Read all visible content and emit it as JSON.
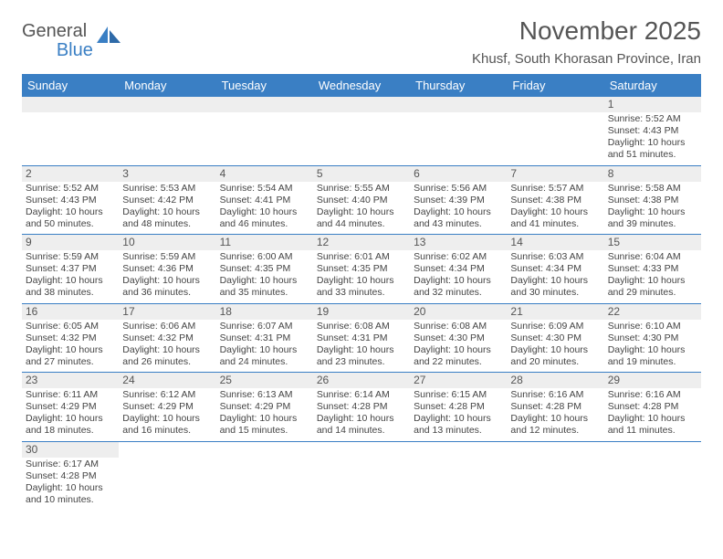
{
  "logo": {
    "main": "General",
    "accent": "Blue"
  },
  "title": "November 2025",
  "location": "Khusf, South Khorasan Province, Iran",
  "colors": {
    "header_bg": "#3a7fc4",
    "header_text": "#ffffff",
    "stripe_bg": "#eeeeee",
    "text": "#555555",
    "rule": "#3a7fc4"
  },
  "fonts": {
    "title_size": 28,
    "location_size": 15,
    "header_size": 13,
    "cell_size": 10.5
  },
  "day_names": [
    "Sunday",
    "Monday",
    "Tuesday",
    "Wednesday",
    "Thursday",
    "Friday",
    "Saturday"
  ],
  "weeks": [
    [
      {
        "n": "",
        "sr": "",
        "ss": "",
        "dl": ""
      },
      {
        "n": "",
        "sr": "",
        "ss": "",
        "dl": ""
      },
      {
        "n": "",
        "sr": "",
        "ss": "",
        "dl": ""
      },
      {
        "n": "",
        "sr": "",
        "ss": "",
        "dl": ""
      },
      {
        "n": "",
        "sr": "",
        "ss": "",
        "dl": ""
      },
      {
        "n": "",
        "sr": "",
        "ss": "",
        "dl": ""
      },
      {
        "n": "1",
        "sr": "Sunrise: 5:52 AM",
        "ss": "Sunset: 4:43 PM",
        "dl": "Daylight: 10 hours and 51 minutes."
      }
    ],
    [
      {
        "n": "2",
        "sr": "Sunrise: 5:52 AM",
        "ss": "Sunset: 4:43 PM",
        "dl": "Daylight: 10 hours and 50 minutes."
      },
      {
        "n": "3",
        "sr": "Sunrise: 5:53 AM",
        "ss": "Sunset: 4:42 PM",
        "dl": "Daylight: 10 hours and 48 minutes."
      },
      {
        "n": "4",
        "sr": "Sunrise: 5:54 AM",
        "ss": "Sunset: 4:41 PM",
        "dl": "Daylight: 10 hours and 46 minutes."
      },
      {
        "n": "5",
        "sr": "Sunrise: 5:55 AM",
        "ss": "Sunset: 4:40 PM",
        "dl": "Daylight: 10 hours and 44 minutes."
      },
      {
        "n": "6",
        "sr": "Sunrise: 5:56 AM",
        "ss": "Sunset: 4:39 PM",
        "dl": "Daylight: 10 hours and 43 minutes."
      },
      {
        "n": "7",
        "sr": "Sunrise: 5:57 AM",
        "ss": "Sunset: 4:38 PM",
        "dl": "Daylight: 10 hours and 41 minutes."
      },
      {
        "n": "8",
        "sr": "Sunrise: 5:58 AM",
        "ss": "Sunset: 4:38 PM",
        "dl": "Daylight: 10 hours and 39 minutes."
      }
    ],
    [
      {
        "n": "9",
        "sr": "Sunrise: 5:59 AM",
        "ss": "Sunset: 4:37 PM",
        "dl": "Daylight: 10 hours and 38 minutes."
      },
      {
        "n": "10",
        "sr": "Sunrise: 5:59 AM",
        "ss": "Sunset: 4:36 PM",
        "dl": "Daylight: 10 hours and 36 minutes."
      },
      {
        "n": "11",
        "sr": "Sunrise: 6:00 AM",
        "ss": "Sunset: 4:35 PM",
        "dl": "Daylight: 10 hours and 35 minutes."
      },
      {
        "n": "12",
        "sr": "Sunrise: 6:01 AM",
        "ss": "Sunset: 4:35 PM",
        "dl": "Daylight: 10 hours and 33 minutes."
      },
      {
        "n": "13",
        "sr": "Sunrise: 6:02 AM",
        "ss": "Sunset: 4:34 PM",
        "dl": "Daylight: 10 hours and 32 minutes."
      },
      {
        "n": "14",
        "sr": "Sunrise: 6:03 AM",
        "ss": "Sunset: 4:34 PM",
        "dl": "Daylight: 10 hours and 30 minutes."
      },
      {
        "n": "15",
        "sr": "Sunrise: 6:04 AM",
        "ss": "Sunset: 4:33 PM",
        "dl": "Daylight: 10 hours and 29 minutes."
      }
    ],
    [
      {
        "n": "16",
        "sr": "Sunrise: 6:05 AM",
        "ss": "Sunset: 4:32 PM",
        "dl": "Daylight: 10 hours and 27 minutes."
      },
      {
        "n": "17",
        "sr": "Sunrise: 6:06 AM",
        "ss": "Sunset: 4:32 PM",
        "dl": "Daylight: 10 hours and 26 minutes."
      },
      {
        "n": "18",
        "sr": "Sunrise: 6:07 AM",
        "ss": "Sunset: 4:31 PM",
        "dl": "Daylight: 10 hours and 24 minutes."
      },
      {
        "n": "19",
        "sr": "Sunrise: 6:08 AM",
        "ss": "Sunset: 4:31 PM",
        "dl": "Daylight: 10 hours and 23 minutes."
      },
      {
        "n": "20",
        "sr": "Sunrise: 6:08 AM",
        "ss": "Sunset: 4:30 PM",
        "dl": "Daylight: 10 hours and 22 minutes."
      },
      {
        "n": "21",
        "sr": "Sunrise: 6:09 AM",
        "ss": "Sunset: 4:30 PM",
        "dl": "Daylight: 10 hours and 20 minutes."
      },
      {
        "n": "22",
        "sr": "Sunrise: 6:10 AM",
        "ss": "Sunset: 4:30 PM",
        "dl": "Daylight: 10 hours and 19 minutes."
      }
    ],
    [
      {
        "n": "23",
        "sr": "Sunrise: 6:11 AM",
        "ss": "Sunset: 4:29 PM",
        "dl": "Daylight: 10 hours and 18 minutes."
      },
      {
        "n": "24",
        "sr": "Sunrise: 6:12 AM",
        "ss": "Sunset: 4:29 PM",
        "dl": "Daylight: 10 hours and 16 minutes."
      },
      {
        "n": "25",
        "sr": "Sunrise: 6:13 AM",
        "ss": "Sunset: 4:29 PM",
        "dl": "Daylight: 10 hours and 15 minutes."
      },
      {
        "n": "26",
        "sr": "Sunrise: 6:14 AM",
        "ss": "Sunset: 4:28 PM",
        "dl": "Daylight: 10 hours and 14 minutes."
      },
      {
        "n": "27",
        "sr": "Sunrise: 6:15 AM",
        "ss": "Sunset: 4:28 PM",
        "dl": "Daylight: 10 hours and 13 minutes."
      },
      {
        "n": "28",
        "sr": "Sunrise: 6:16 AM",
        "ss": "Sunset: 4:28 PM",
        "dl": "Daylight: 10 hours and 12 minutes."
      },
      {
        "n": "29",
        "sr": "Sunrise: 6:16 AM",
        "ss": "Sunset: 4:28 PM",
        "dl": "Daylight: 10 hours and 11 minutes."
      }
    ],
    [
      {
        "n": "30",
        "sr": "Sunrise: 6:17 AM",
        "ss": "Sunset: 4:28 PM",
        "dl": "Daylight: 10 hours and 10 minutes."
      },
      {
        "n": "",
        "sr": "",
        "ss": "",
        "dl": ""
      },
      {
        "n": "",
        "sr": "",
        "ss": "",
        "dl": ""
      },
      {
        "n": "",
        "sr": "",
        "ss": "",
        "dl": ""
      },
      {
        "n": "",
        "sr": "",
        "ss": "",
        "dl": ""
      },
      {
        "n": "",
        "sr": "",
        "ss": "",
        "dl": ""
      },
      {
        "n": "",
        "sr": "",
        "ss": "",
        "dl": ""
      }
    ]
  ]
}
